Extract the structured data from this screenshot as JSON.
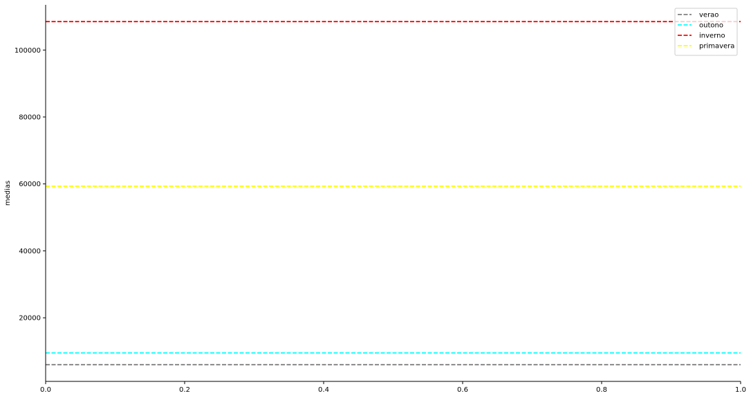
{
  "chart_data": {
    "type": "line",
    "title": "",
    "xlabel": "",
    "ylabel": "medias",
    "xlim": [
      0.0,
      1.0
    ],
    "ylim": [
      1000,
      113500
    ],
    "x_ticks": [
      "0.0",
      "0.2",
      "0.4",
      "0.6",
      "0.8",
      "1.0"
    ],
    "x_tick_values": [
      0.0,
      0.2,
      0.4,
      0.6,
      0.8,
      1.0
    ],
    "y_ticks": [
      "20000",
      "40000",
      "60000",
      "80000",
      "100000"
    ],
    "y_tick_values": [
      20000,
      40000,
      60000,
      80000,
      100000
    ],
    "grid": false,
    "legend_position": "upper right",
    "line_style": "dashed",
    "series": [
      {
        "name": "verao",
        "value": 6000,
        "color": "#808080"
      },
      {
        "name": "outono",
        "value": 9500,
        "color": "#00ffff"
      },
      {
        "name": "inverno",
        "value": 108500,
        "color": "#ff0000"
      },
      {
        "name": "primavera",
        "value": 59300,
        "color": "#ffff00"
      }
    ]
  }
}
